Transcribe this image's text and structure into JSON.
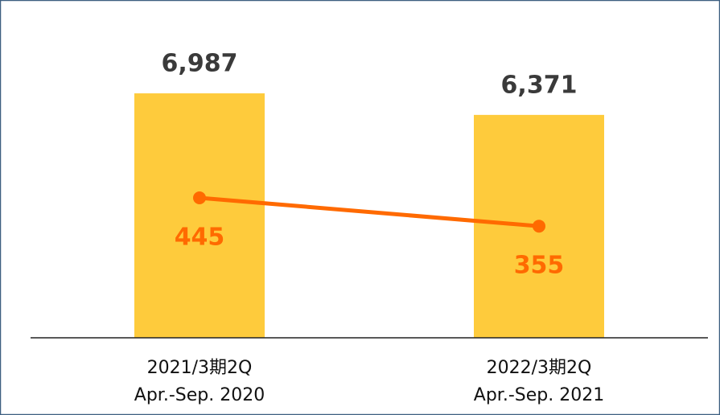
{
  "chart_data": {
    "type": "bar-line",
    "categories": [
      "2021/3期2Q",
      "2022/3期2Q"
    ],
    "category_periods": [
      "Apr.-Sep. 2020",
      "Apr.-Sep. 2021"
    ],
    "series": [
      {
        "type": "bar",
        "color": "#fecb3c",
        "values": [
          6987,
          6371
        ],
        "value_labels": [
          "6,987",
          "6,371"
        ]
      },
      {
        "type": "line",
        "axis": "y2",
        "color": "#ff6a00",
        "values": [
          445,
          355
        ]
      }
    ],
    "ylim": [
      0,
      8000
    ],
    "y2lim": [
      0,
      890
    ]
  }
}
